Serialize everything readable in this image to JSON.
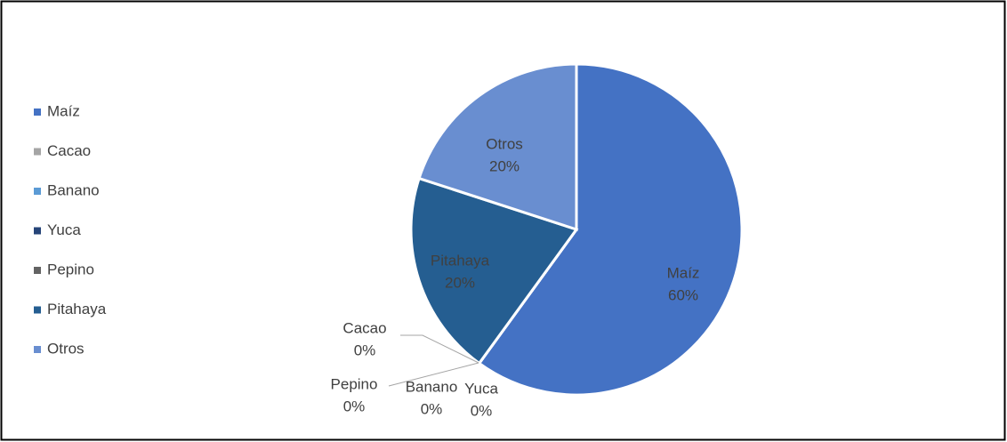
{
  "chart_data": {
    "type": "pie",
    "categories": [
      "Maíz",
      "Cacao",
      "Banano",
      "Yuca",
      "Pepino",
      "Pitahaya",
      "Otros"
    ],
    "values": [
      60,
      0,
      0,
      0,
      0,
      20,
      20
    ],
    "value_labels": [
      "60%",
      "0%",
      "0%",
      "0%",
      "0%",
      "20%",
      "20%"
    ],
    "colors": [
      "#4472c4",
      "#a5a5a5",
      "#5b9bd5",
      "#264478",
      "#636363",
      "#255e91",
      "#698ed0"
    ],
    "legend": "left"
  }
}
